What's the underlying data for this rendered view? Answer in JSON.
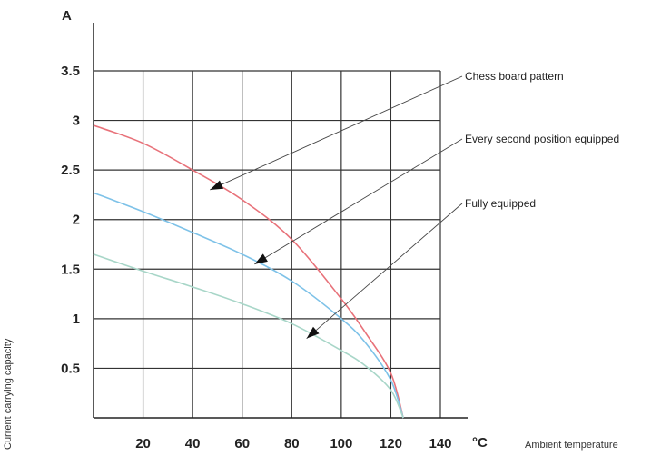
{
  "chart_data": {
    "type": "line",
    "xlabel": "Ambient temperature",
    "ylabel": "Current carrying capacity",
    "x_unit": "°C",
    "y_unit": "A",
    "xlim": [
      0,
      140
    ],
    "ylim": [
      0,
      3.5
    ],
    "x_ticks": [
      20,
      40,
      60,
      80,
      100,
      120,
      140
    ],
    "y_ticks": [
      0.5,
      1,
      1.5,
      2,
      2.5,
      3,
      3.5
    ],
    "x_tick_labels": [
      "20",
      "40",
      "60",
      "80",
      "100",
      "120",
      "140"
    ],
    "y_tick_labels": [
      "0.5",
      "1",
      "1.5",
      "2",
      "2.5",
      "3",
      "3.5"
    ],
    "grid": true,
    "series": [
      {
        "name": "Chess board pattern",
        "color": "#e8727a",
        "x": [
          0,
          20,
          40,
          60,
          80,
          100,
          110,
          120,
          125
        ],
        "y": [
          2.95,
          2.77,
          2.5,
          2.2,
          1.8,
          1.2,
          0.85,
          0.45,
          0.0
        ]
      },
      {
        "name": "Every second position equipped",
        "color": "#7ec2e8",
        "x": [
          0,
          20,
          40,
          60,
          80,
          100,
          110,
          120,
          125
        ],
        "y": [
          2.27,
          2.08,
          1.87,
          1.65,
          1.38,
          1.0,
          0.75,
          0.38,
          0.0
        ]
      },
      {
        "name": "Fully equipped",
        "color": "#a8d6c8",
        "x": [
          0,
          20,
          40,
          60,
          80,
          100,
          110,
          120,
          125
        ],
        "y": [
          1.65,
          1.48,
          1.32,
          1.15,
          0.95,
          0.68,
          0.52,
          0.28,
          0.0
        ]
      }
    ],
    "annotations": [
      {
        "text": "Chess board pattern",
        "target": [
          47,
          2.3
        ]
      },
      {
        "text": "Every second position equipped",
        "target": [
          65,
          1.55
        ]
      },
      {
        "text": "Fully equipped",
        "target": [
          86,
          0.8
        ]
      }
    ]
  }
}
